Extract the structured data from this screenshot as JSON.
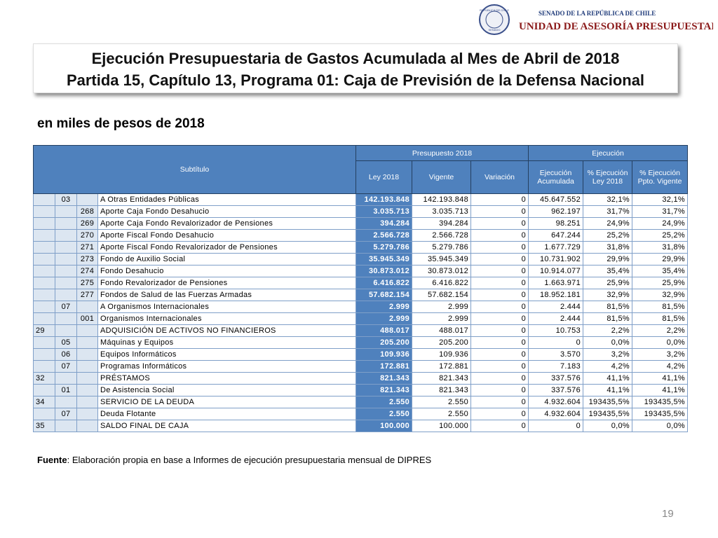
{
  "logo": {
    "seal_top": "REPÚBLICA DE CHILE",
    "seal_bottom": "SENADO",
    "line1": "SENADO DE LA REPÚBLICA DE CHILE",
    "line2": "UNIDAD DE ASESORÍA PRESUPUESTARIA"
  },
  "title": {
    "line1": "Ejecución Presupuestaria de Gastos Acumulada al Mes de Abril de 2018",
    "line2": "Partida 15, Capítulo 13, Programa 01: Caja de Previsión de la Defensa Nacional"
  },
  "subtitle": "en miles de pesos de 2018",
  "table": {
    "header": {
      "subtitulo": "Subtítulo",
      "presupuesto": "Presupuesto 2018",
      "ejecucion": "Ejecución",
      "columns": [
        "Ley 2018",
        "Vigente",
        "Variación",
        "Ejecución Acumulada",
        "% Ejecución Ley 2018",
        "% Ejecución Ppto. Vigente"
      ]
    },
    "rows": [
      [
        null,
        "03",
        null,
        "A Otras Entidades Públicas",
        "142.193.848",
        "142.193.848",
        "0",
        "45.647.552",
        "32,1%",
        "32,1%"
      ],
      [
        null,
        null,
        "268",
        "Aporte Caja Fondo Desahucio",
        "3.035.713",
        "3.035.713",
        "0",
        "962.197",
        "31,7%",
        "31,7%"
      ],
      [
        null,
        null,
        "269",
        "Aporte Caja Fondo Revalorizador de Pensiones",
        "394.284",
        "394.284",
        "0",
        "98.251",
        "24,9%",
        "24,9%"
      ],
      [
        null,
        null,
        "270",
        "Aporte Fiscal Fondo Desahucio",
        "2.566.728",
        "2.566.728",
        "0",
        "647.244",
        "25,2%",
        "25,2%"
      ],
      [
        null,
        null,
        "271",
        "Aporte Fiscal Fondo Revalorizador de Pensiones",
        "5.279.786",
        "5.279.786",
        "0",
        "1.677.729",
        "31,8%",
        "31,8%"
      ],
      [
        null,
        null,
        "273",
        "Fondo de Auxilio Social",
        "35.945.349",
        "35.945.349",
        "0",
        "10.731.902",
        "29,9%",
        "29,9%"
      ],
      [
        null,
        null,
        "274",
        "Fondo Desahucio",
        "30.873.012",
        "30.873.012",
        "0",
        "10.914.077",
        "35,4%",
        "35,4%"
      ],
      [
        null,
        null,
        "275",
        "Fondo Revalorizador de Pensiones",
        "6.416.822",
        "6.416.822",
        "0",
        "1.663.971",
        "25,9%",
        "25,9%"
      ],
      [
        null,
        null,
        "277",
        "Fondos de Salud de las Fuerzas Armadas",
        "57.682.154",
        "57.682.154",
        "0",
        "18.952.181",
        "32,9%",
        "32,9%"
      ],
      [
        null,
        "07",
        null,
        "A Organismos Internacionales",
        "2.999",
        "2.999",
        "0",
        "2.444",
        "81,5%",
        "81,5%"
      ],
      [
        null,
        null,
        "001",
        "Organismos Internacionales",
        "2.999",
        "2.999",
        "0",
        "2.444",
        "81,5%",
        "81,5%"
      ],
      [
        "29",
        null,
        null,
        "ADQUISICIÓN DE ACTIVOS NO FINANCIEROS",
        "488.017",
        "488.017",
        "0",
        "10.753",
        "2,2%",
        "2,2%"
      ],
      [
        null,
        "05",
        null,
        "Máquinas y Equipos",
        "205.200",
        "205.200",
        "0",
        "0",
        "0,0%",
        "0,0%"
      ],
      [
        null,
        "06",
        null,
        "Equipos Informáticos",
        "109.936",
        "109.936",
        "0",
        "3.570",
        "3,2%",
        "3,2%"
      ],
      [
        null,
        "07",
        null,
        "Programas Informáticos",
        "172.881",
        "172.881",
        "0",
        "7.183",
        "4,2%",
        "4,2%"
      ],
      [
        "32",
        null,
        null,
        "PRÉSTAMOS",
        "821.343",
        "821.343",
        "0",
        "337.576",
        "41,1%",
        "41,1%"
      ],
      [
        null,
        "01",
        null,
        "De Asistencia Social",
        "821.343",
        "821.343",
        "0",
        "337.576",
        "41,1%",
        "41,1%"
      ],
      [
        "34",
        null,
        null,
        "SERVICIO DE LA DEUDA",
        "2.550",
        "2.550",
        "0",
        "4.932.604",
        "193435,5%",
        "193435,5%"
      ],
      [
        null,
        "07",
        null,
        "Deuda Flotante",
        "2.550",
        "2.550",
        "0",
        "4.932.604",
        "193435,5%",
        "193435,5%"
      ],
      [
        "35",
        null,
        null,
        "SALDO FINAL DE CAJA",
        "100.000",
        "100.000",
        "0",
        "0",
        "0,0%",
        "0,0%"
      ]
    ]
  },
  "footnote": {
    "label": "Fuente",
    "text": ": Elaboración propia en base  a Informes de ejecución presupuestaria mensual de DIPRES"
  },
  "page_number": "19"
}
